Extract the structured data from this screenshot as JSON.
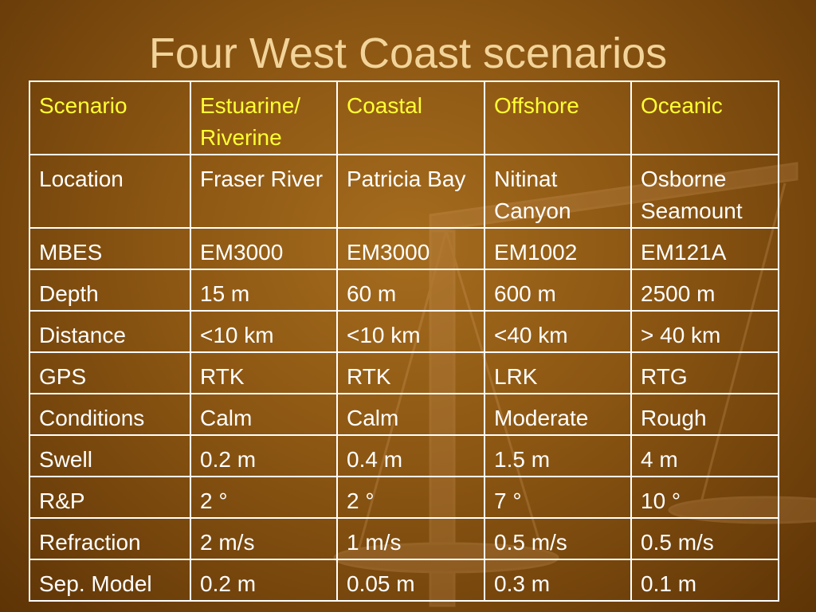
{
  "title": "Four West Coast scenarios",
  "table": {
    "header": [
      "Scenario",
      "Estuarine/ Riverine",
      "Coastal",
      "Offshore",
      "Oceanic"
    ],
    "rows": [
      [
        "Location",
        "Fraser River",
        "Patricia Bay",
        "Nitinat Canyon",
        "Osborne Seamount"
      ],
      [
        "MBES",
        "EM3000",
        "EM3000",
        "EM1002",
        "EM121A"
      ],
      [
        "Depth",
        "15 m",
        "60 m",
        "600 m",
        "2500 m"
      ],
      [
        "Distance",
        "<10 km",
        "<10 km",
        "<40 km",
        "> 40 km"
      ],
      [
        "GPS",
        "RTK",
        "RTK",
        "LRK",
        "RTG"
      ],
      [
        "Conditions",
        "Calm",
        "Calm",
        "Moderate",
        "Rough"
      ],
      [
        "Swell",
        "0.2 m",
        "0.4 m",
        "1.5 m",
        "4 m"
      ],
      [
        "R&P",
        "2 °",
        "2 °",
        "7 °",
        "10 °"
      ],
      [
        "Refraction",
        "2 m/s",
        "1 m/s",
        "0.5 m/s",
        "0.5 m/s"
      ],
      [
        "Sep. Model",
        "0.2 m",
        "0.05 m",
        "0.3 m",
        "0.1 m"
      ]
    ]
  }
}
